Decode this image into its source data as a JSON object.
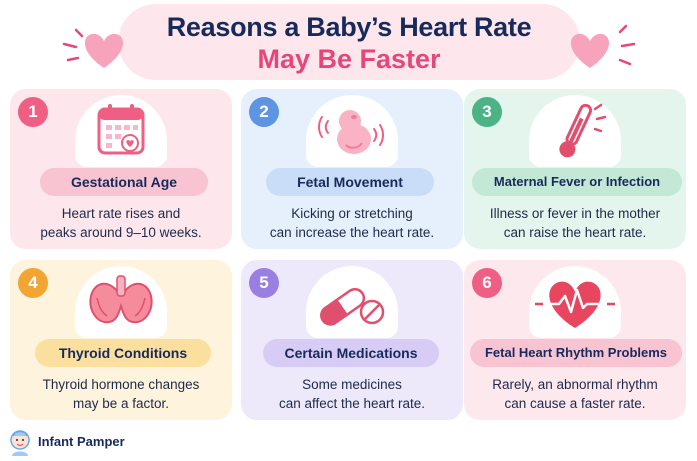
{
  "header": {
    "title_line1": "Reasons a Baby’s Heart Rate",
    "title_line2": "May Be Faster"
  },
  "cards": [
    {
      "number": "1",
      "title": "Gestational Age",
      "desc_line1": "Heart rate rises and",
      "desc_line2": "peaks around 9–10 weeks.",
      "icon": "calendar-heart-icon"
    },
    {
      "number": "2",
      "title": "Fetal Movement",
      "desc_line1": "Kicking or stretching",
      "desc_line2": "can increase the heart rate.",
      "icon": "fetus-icon"
    },
    {
      "number": "3",
      "title": "Maternal Fever or Infection",
      "desc_line1": "Illness or fever in the mother",
      "desc_line2": "can raise the heart rate.",
      "icon": "thermometer-icon"
    },
    {
      "number": "4",
      "title": "Thyroid Conditions",
      "desc_line1": "Thyroid hormone changes",
      "desc_line2": "may be a factor.",
      "icon": "thyroid-icon"
    },
    {
      "number": "5",
      "title": "Certain Medications",
      "desc_line1": "Some medicines",
      "desc_line2": "can affect the heart rate.",
      "icon": "pill-capsule-icon"
    },
    {
      "number": "6",
      "title": "Fetal Heart Rhythm Problems",
      "desc_line1": "Rarely, an abnormal rhythm",
      "desc_line2": "can cause a faster rate.",
      "icon": "heart-rhythm-icon"
    }
  ],
  "brand": {
    "name": "Infant Pamper",
    "icon": "baby-logo-icon"
  },
  "colors": {
    "navy": "#172a5a",
    "pink": "#e6477a",
    "card_pink": "#fde7ec",
    "card_blue": "#e6f0fd",
    "card_green": "#e4f5ed",
    "card_yellow": "#fef4dd",
    "card_purple": "#ede9fb"
  }
}
